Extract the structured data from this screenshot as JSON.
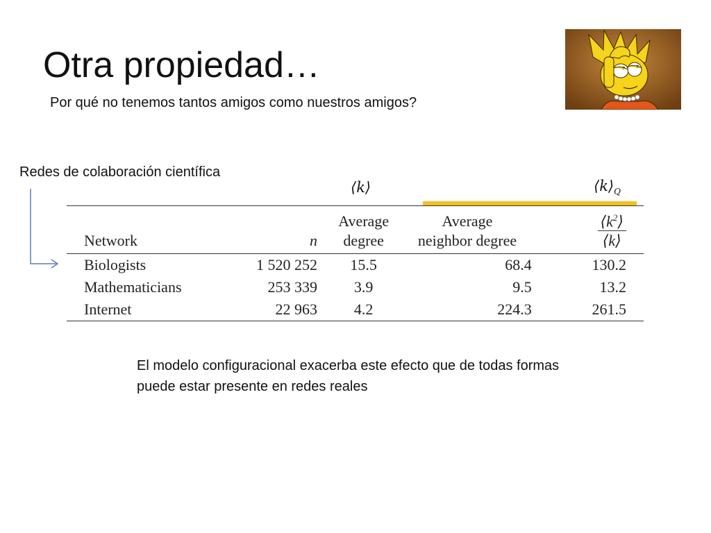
{
  "slide": {
    "title": "Otra propiedad…",
    "subtitle": "Por qué no tenemos tantos amigos como nuestros amigos?",
    "caption": "Redes de colaboración científica",
    "conclusion": "El modelo configuracional exacerba este efecto que de todas formas puede estar presente en redes reales"
  },
  "annotations": {
    "k_label": "⟨k⟩",
    "kq_label": "⟨k⟩",
    "kq_sub": "Q",
    "highlight_color": "#f2c01f"
  },
  "table": {
    "headers": {
      "network": "Network",
      "n": "n",
      "avg_degree_1": "Average",
      "avg_degree_2": "degree",
      "avg_neighbor_1": "Average",
      "avg_neighbor_2": "neighbor degree",
      "ratio_num": "⟨k",
      "ratio_num_sup": "2",
      "ratio_num_close": "⟩",
      "ratio_den": "⟨k⟩"
    },
    "rows": [
      {
        "network": "Biologists",
        "n": "1 520 252",
        "avg_degree": "15.5",
        "avg_neighbor_degree": "68.4",
        "ratio": "130.2"
      },
      {
        "network": "Mathematicians",
        "n": "253 339",
        "avg_degree": "3.9",
        "avg_neighbor_degree": "9.5",
        "ratio": "13.2"
      },
      {
        "network": "Internet",
        "n": "22 963",
        "avg_degree": "4.2",
        "avg_neighbor_degree": "224.3",
        "ratio": "261.5"
      }
    ]
  },
  "image": {
    "icon": "cartoon-character-thinking-icon"
  }
}
